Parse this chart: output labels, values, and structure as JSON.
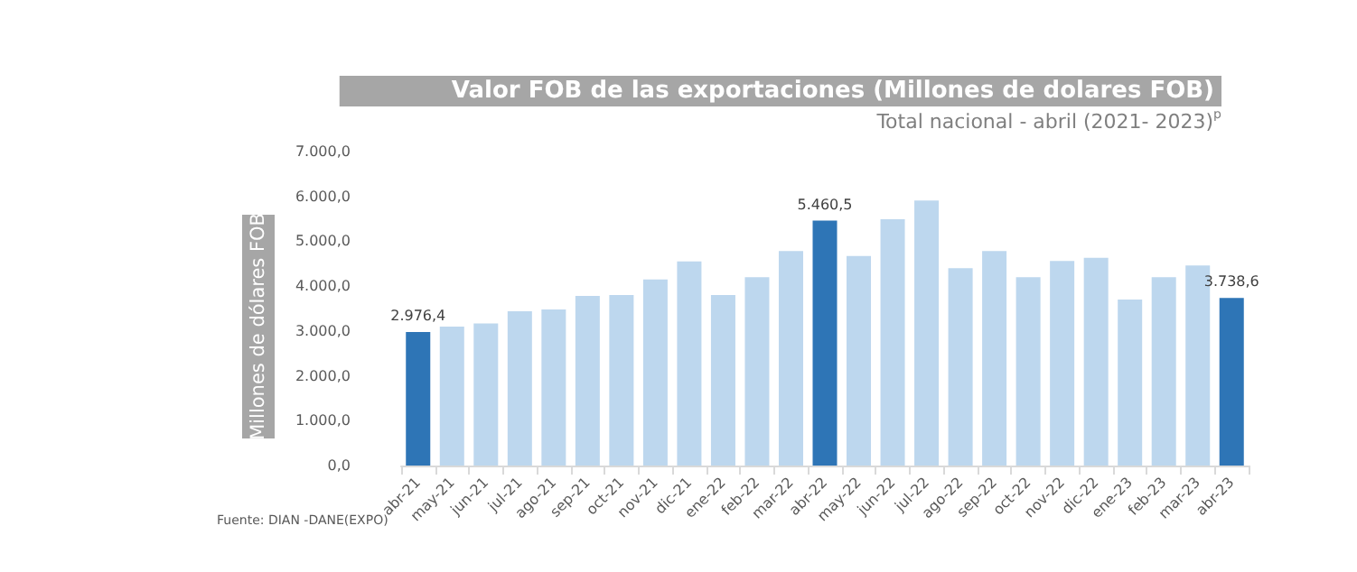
{
  "chart_data": {
    "type": "bar",
    "title": "Valor FOB de las exportaciones (Millones de dolares FOB)",
    "subtitle": "Total nacional - abril (2021- 2023)$^{p}$",
    "ylabel": "Millones de dólares FOB",
    "annotations": [
      "Fuente: DIAN -DANE(EXPO)"
    ],
    "categories": [
      "abr-21",
      "may-21",
      "jun-21",
      "jul-21",
      "ago-21",
      "sep-21",
      "oct-21",
      "nov-21",
      "dic-21",
      "ene-22",
      "feb-22",
      "mar-22",
      "abr-22",
      "may-22",
      "jun-22",
      "jul-22",
      "ago-22",
      "sep-22",
      "oct-22",
      "nov-22",
      "dic-22",
      "ene-23",
      "feb-23",
      "mar-23",
      "abr-23"
    ],
    "values": [
      2976.4,
      3100,
      3170,
      3440,
      3480,
      3780,
      3800,
      4150,
      4550,
      3800,
      4200,
      4780,
      5460.5,
      4670,
      5490,
      5910,
      4400,
      4780,
      4200,
      4560,
      4630,
      3700,
      4200,
      4460,
      3738.6
    ],
    "value_labels": [
      "2.976,4",
      null,
      null,
      null,
      null,
      null,
      null,
      null,
      null,
      null,
      null,
      null,
      "5.460,5",
      null,
      null,
      null,
      null,
      null,
      null,
      null,
      null,
      null,
      null,
      null,
      "3.738,6"
    ],
    "colors": [
      "#2e75b6",
      "#bdd7ee",
      "#bdd7ee",
      "#bdd7ee",
      "#bdd7ee",
      "#bdd7ee",
      "#bdd7ee",
      "#bdd7ee",
      "#bdd7ee",
      "#bdd7ee",
      "#bdd7ee",
      "#bdd7ee",
      "#2e75b6",
      "#bdd7ee",
      "#bdd7ee",
      "#bdd7ee",
      "#bdd7ee",
      "#bdd7ee",
      "#bdd7ee",
      "#bdd7ee",
      "#bdd7ee",
      "#bdd7ee",
      "#bdd7ee",
      "#bdd7ee",
      "#2e75b6"
    ],
    "ylim": [
      0,
      7000
    ],
    "yticks": [
      {
        "value": 0,
        "label": "0,0"
      },
      {
        "value": 1000,
        "label": "1.000,0"
      },
      {
        "value": 2000,
        "label": "2.000,0"
      },
      {
        "value": 3000,
        "label": "3.000,0"
      },
      {
        "value": 4000,
        "label": "4.000,0"
      },
      {
        "value": 5000,
        "label": "5.000,0"
      },
      {
        "value": 6000,
        "label": "6.000,0"
      },
      {
        "value": 7000,
        "label": "7.000,0"
      }
    ],
    "grid": false
  }
}
